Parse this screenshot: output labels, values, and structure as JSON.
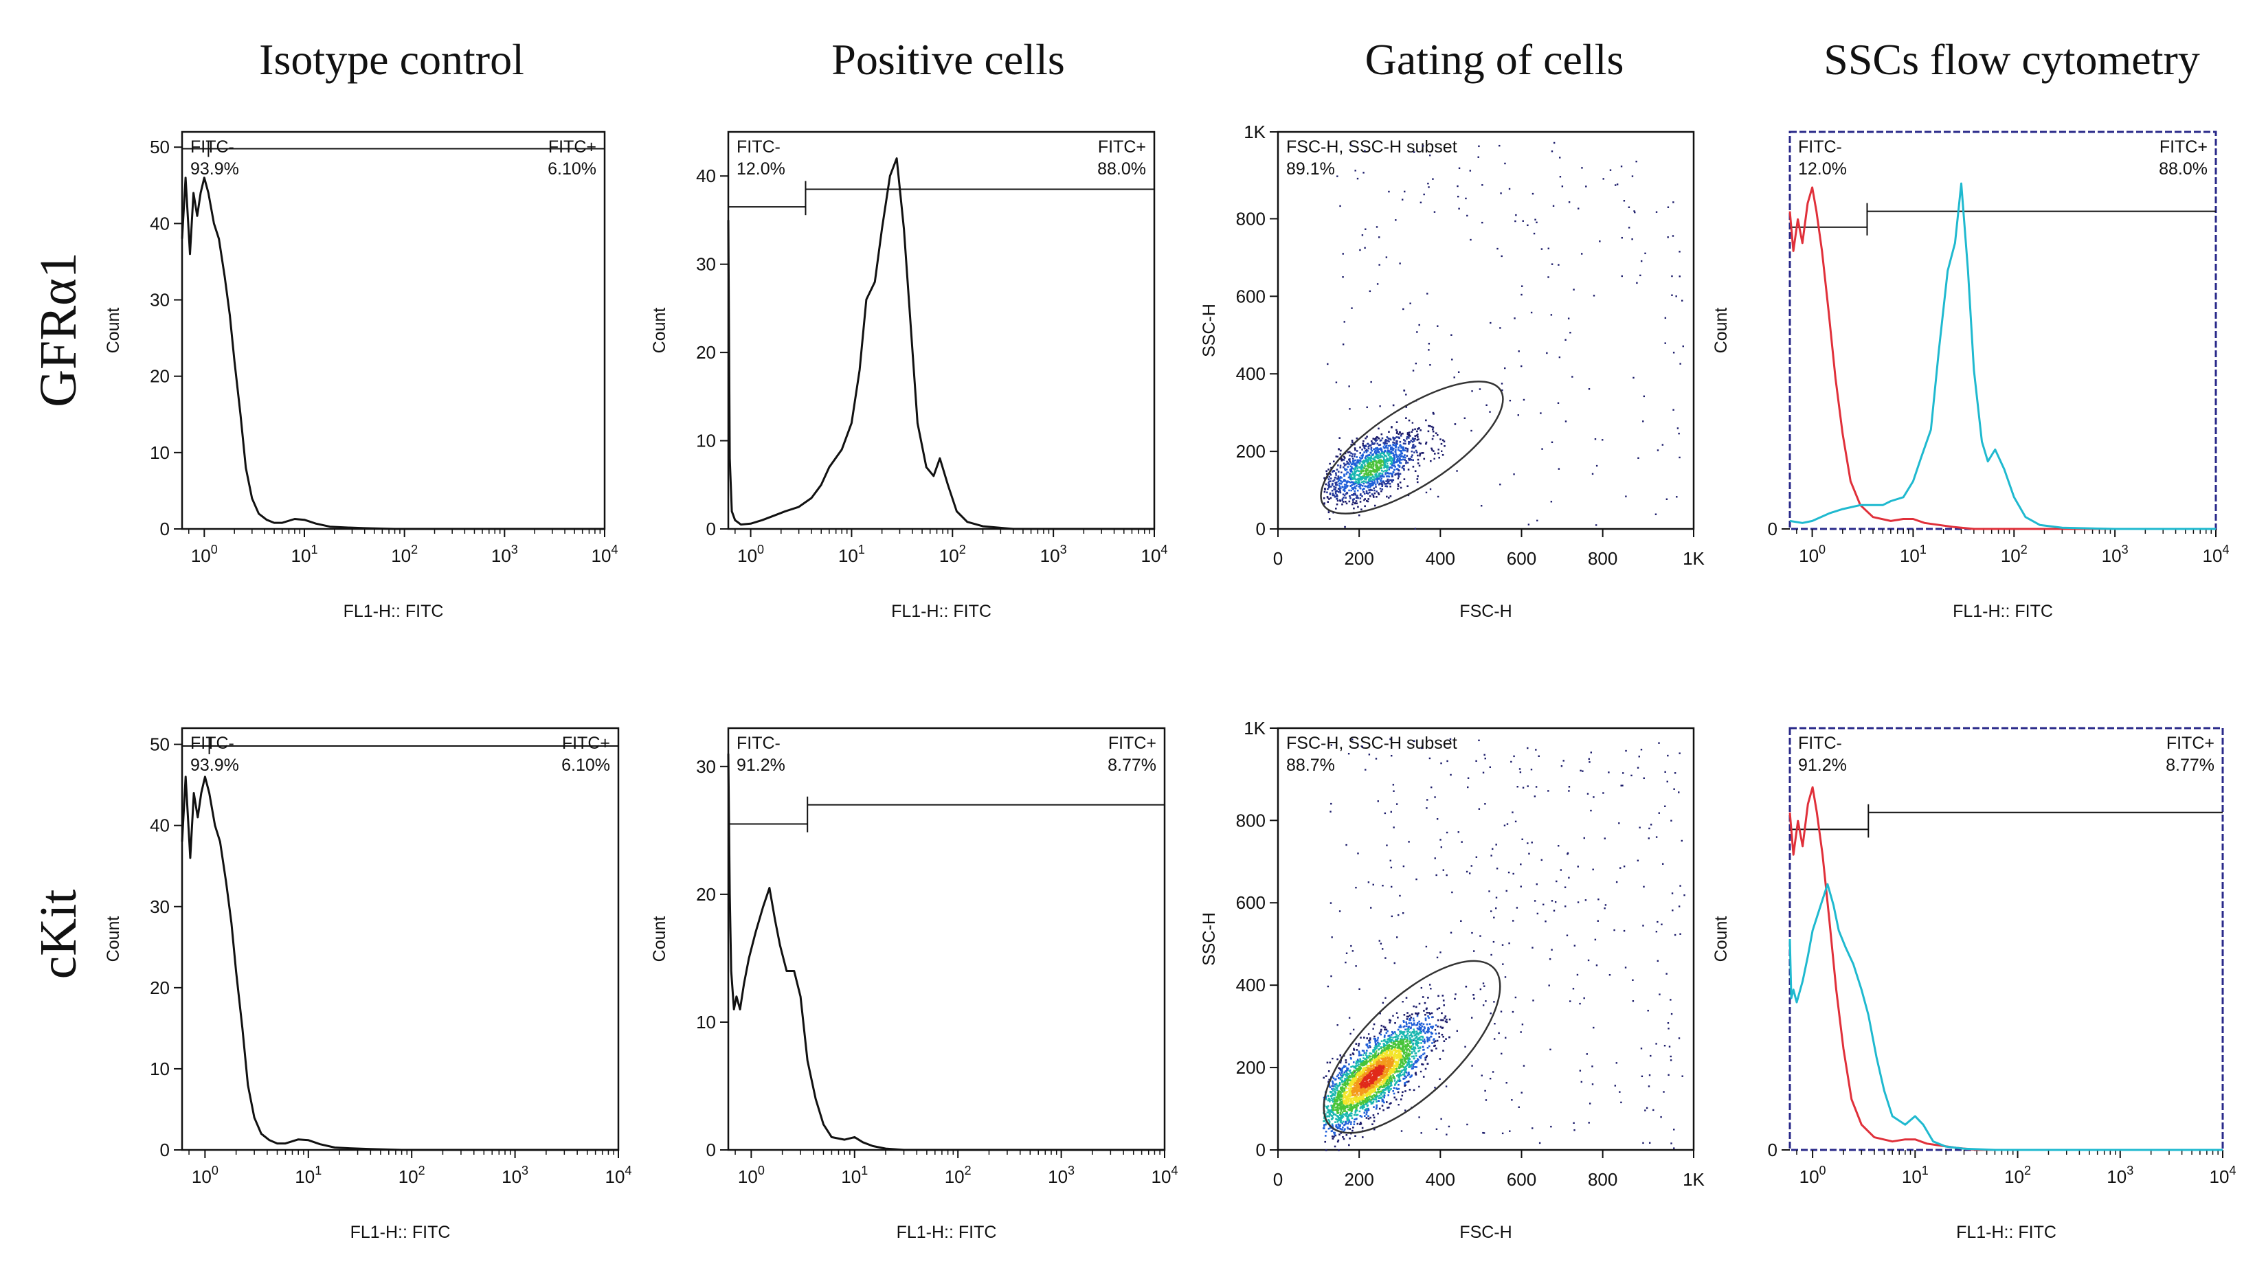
{
  "column_titles": [
    "Isotype control",
    "Positive cells",
    "Gating of cells",
    "SSCs flow cytometry"
  ],
  "row_labels": [
    "GFRα1",
    "cKit"
  ],
  "colors": {
    "ink": "#111111",
    "red": "#e0303a",
    "cyan": "#1fb9cf",
    "frame_blue": "#2a2a8a"
  },
  "chart_data": [
    {
      "id": "gfra1-isotype",
      "type": "line",
      "title": "",
      "xlabel": "FL1-H:: FITC",
      "ylabel": "Count",
      "xscale": "log",
      "xlim": [
        0.6,
        10000
      ],
      "ylim": [
        0,
        52
      ],
      "xticks": [
        "10^0",
        "10^1",
        "10^2",
        "10^3",
        "10^4"
      ],
      "yticks": [
        0,
        10,
        20,
        30,
        40,
        50
      ],
      "gates": [
        {
          "left_label": "FITC-",
          "left_pct": "93.9%",
          "right_label": "FITC+",
          "right_pct": "6.10%",
          "split": 1.1,
          "level": 49.8
        }
      ],
      "series": [
        {
          "name": "isotype",
          "color": "#111111",
          "x": [
            0.6,
            0.65,
            0.72,
            0.78,
            0.85,
            0.92,
            1.0,
            1.1,
            1.25,
            1.4,
            1.6,
            1.8,
            2.0,
            2.3,
            2.6,
            3.0,
            3.5,
            4.2,
            5,
            6,
            8,
            10,
            13,
            18,
            25,
            40,
            80,
            200,
            1000,
            10000
          ],
          "y": [
            38,
            46,
            36,
            44,
            41,
            44,
            46,
            44,
            40,
            38,
            33,
            28,
            22,
            15,
            8,
            4,
            2,
            1.2,
            0.8,
            0.8,
            1.3,
            1.2,
            0.7,
            0.3,
            0.2,
            0.1,
            0,
            0,
            0,
            0
          ]
        }
      ]
    },
    {
      "id": "gfra1-positive",
      "type": "line",
      "title": "",
      "xlabel": "FL1-H:: FITC",
      "ylabel": "Count",
      "xscale": "log",
      "xlim": [
        0.6,
        10000
      ],
      "ylim": [
        0,
        45
      ],
      "xticks": [
        "10^0",
        "10^1",
        "10^2",
        "10^3",
        "10^4"
      ],
      "yticks": [
        0,
        10,
        20,
        30,
        40
      ],
      "gates": [
        {
          "left_label": "FITC-",
          "left_pct": "12.0%",
          "right_label": "FITC+",
          "right_pct": "88.0%",
          "split": 3.5,
          "level": 36.5,
          "right_level": 38.5
        }
      ],
      "series": [
        {
          "name": "positive",
          "color": "#111111",
          "x": [
            0.6,
            0.62,
            0.65,
            0.7,
            0.8,
            1.0,
            1.3,
            1.7,
            2.2,
            3,
            4,
            5,
            6,
            8,
            10,
            12,
            14,
            17,
            20,
            24,
            28,
            33,
            38,
            45,
            55,
            65,
            75,
            90,
            110,
            140,
            200,
            400,
            1000,
            10000
          ],
          "y": [
            35,
            8,
            2,
            1,
            0.5,
            0.6,
            1,
            1.5,
            2,
            2.5,
            3.5,
            5,
            7,
            9,
            12,
            18,
            26,
            28,
            34,
            40,
            42,
            34,
            24,
            12,
            7,
            6,
            8,
            5,
            2,
            0.8,
            0.3,
            0,
            0,
            0
          ]
        }
      ]
    },
    {
      "id": "gfra1-gating",
      "type": "scatter",
      "title": "",
      "xlabel": "FSC-H",
      "ylabel": "SSC-H",
      "xscale": "linear",
      "xlim": [
        0,
        1024
      ],
      "ylim": [
        0,
        1024
      ],
      "xticks": [
        "0",
        "200",
        "400",
        "600",
        "800",
        "1K"
      ],
      "yticks": [
        "0",
        "200",
        "400",
        "600",
        "800",
        "1K"
      ],
      "gate_label": "FSC-H, SSC-H subset",
      "gate_pct": "89.1%",
      "ellipse": {
        "cx": 330,
        "cy": 210,
        "rx": 260,
        "ry": 100,
        "angle": 33
      },
      "cluster": {
        "cx": 230,
        "cy": 160,
        "sx": 60,
        "sy": 45,
        "rho": 0.6,
        "n": 1300
      },
      "scatter_noise": 220,
      "density_max": "green"
    },
    {
      "id": "gfra1-overlay",
      "type": "line",
      "title": "",
      "xlabel": "FL1-H:: FITC",
      "ylabel": "Count",
      "xscale": "log",
      "xlim": [
        0.6,
        10000
      ],
      "ylim": [
        0,
        100
      ],
      "xticks": [
        "10^0",
        "10^1",
        "10^2",
        "10^3",
        "10^4"
      ],
      "yticks": [
        0
      ],
      "gates": [
        {
          "left_label": "FITC-",
          "left_pct": "12.0%",
          "right_label": "FITC+",
          "right_pct": "88.0%",
          "split": 3.5,
          "level": 76,
          "right_level": 80
        }
      ],
      "series": [
        {
          "name": "isotype",
          "color": "#e0303a",
          "x": [
            0.6,
            0.65,
            0.72,
            0.8,
            0.9,
            1.0,
            1.1,
            1.25,
            1.45,
            1.7,
            2.0,
            2.4,
            3,
            4,
            6,
            8,
            10,
            13,
            18,
            25,
            40,
            80,
            10000
          ],
          "y": [
            80,
            70,
            78,
            72,
            82,
            86,
            80,
            70,
            55,
            38,
            24,
            12,
            6,
            3,
            2,
            2.5,
            2.5,
            1.5,
            1,
            0.5,
            0,
            0,
            0
          ]
        },
        {
          "name": "positive",
          "color": "#1fb9cf",
          "x": [
            0.6,
            0.8,
            1.0,
            1.5,
            2,
            3,
            4,
            5,
            6,
            8,
            10,
            12,
            15,
            18,
            22,
            26,
            30,
            35,
            40,
            48,
            55,
            65,
            80,
            100,
            130,
            180,
            300,
            1000,
            10000
          ],
          "y": [
            2,
            1.5,
            2,
            4,
            5,
            6,
            6,
            6,
            7,
            8,
            12,
            18,
            25,
            45,
            65,
            72,
            87,
            65,
            40,
            22,
            17,
            20,
            15,
            8,
            3,
            1,
            0.3,
            0,
            0
          ]
        }
      ]
    },
    {
      "id": "ckit-isotype",
      "type": "line",
      "title": "",
      "xlabel": "FL1-H:: FITC",
      "ylabel": "Count",
      "xscale": "log",
      "xlim": [
        0.6,
        10000
      ],
      "ylim": [
        0,
        52
      ],
      "xticks": [
        "10^0",
        "10^1",
        "10^2",
        "10^3",
        "10^4"
      ],
      "yticks": [
        0,
        10,
        20,
        30,
        40,
        50
      ],
      "gates": [
        {
          "left_label": "FITC-",
          "left_pct": "93.9%",
          "right_label": "FITC+",
          "right_pct": "6.10%",
          "split": 1.1,
          "level": 49.8
        }
      ],
      "series": [
        {
          "name": "isotype",
          "color": "#111111",
          "x": [
            0.6,
            0.65,
            0.72,
            0.78,
            0.85,
            0.92,
            1.0,
            1.1,
            1.25,
            1.4,
            1.6,
            1.8,
            2.0,
            2.3,
            2.6,
            3.0,
            3.5,
            4.2,
            5,
            6,
            8,
            10,
            13,
            18,
            25,
            40,
            80,
            200,
            1000,
            10000
          ],
          "y": [
            38,
            46,
            36,
            44,
            41,
            44,
            46,
            44,
            40,
            38,
            33,
            28,
            22,
            15,
            8,
            4,
            2,
            1.2,
            0.8,
            0.8,
            1.3,
            1.2,
            0.7,
            0.3,
            0.2,
            0.1,
            0,
            0,
            0,
            0
          ]
        }
      ]
    },
    {
      "id": "ckit-positive",
      "type": "line",
      "title": "",
      "xlabel": "FL1-H:: FITC",
      "ylabel": "Count",
      "xscale": "log",
      "xlim": [
        0.6,
        10000
      ],
      "ylim": [
        0,
        33
      ],
      "xticks": [
        "10^0",
        "10^1",
        "10^2",
        "10^3",
        "10^4"
      ],
      "yticks": [
        0,
        10,
        20,
        30
      ],
      "gates": [
        {
          "left_label": "FITC-",
          "left_pct": "91.2%",
          "right_label": "FITC+",
          "right_pct": "8.77%",
          "split": 3.5,
          "level": 25.5,
          "right_level": 27
        }
      ],
      "series": [
        {
          "name": "positive",
          "color": "#111111",
          "x": [
            0.6,
            0.62,
            0.64,
            0.68,
            0.72,
            0.78,
            0.85,
            0.95,
            1.1,
            1.3,
            1.5,
            1.7,
            1.9,
            2.2,
            2.6,
            3.0,
            3.5,
            4.2,
            5,
            6,
            8,
            10,
            12,
            15,
            20,
            30,
            50,
            100,
            1000,
            10000
          ],
          "y": [
            31,
            20,
            14,
            11,
            12,
            11,
            13,
            15,
            17,
            19,
            20.5,
            18,
            16,
            14,
            14,
            12,
            7,
            4,
            2,
            1,
            0.8,
            1,
            0.6,
            0.3,
            0.1,
            0,
            0,
            0,
            0,
            0
          ]
        }
      ]
    },
    {
      "id": "ckit-gating",
      "type": "scatter",
      "title": "",
      "xlabel": "FSC-H",
      "ylabel": "SSC-H",
      "xscale": "linear",
      "xlim": [
        0,
        1024
      ],
      "ylim": [
        0,
        1024
      ],
      "xticks": [
        "0",
        "200",
        "400",
        "600",
        "800",
        "1K"
      ],
      "yticks": [
        "0",
        "200",
        "400",
        "600",
        "800",
        "1K"
      ],
      "gate_label": "FSC-H, SSC-H subset",
      "gate_pct": "88.7%",
      "ellipse": {
        "cx": 330,
        "cy": 250,
        "rx": 280,
        "ry": 115,
        "angle": 44
      },
      "cluster": {
        "cx": 230,
        "cy": 180,
        "sx": 70,
        "sy": 65,
        "rho": 0.8,
        "n": 3200
      },
      "scatter_noise": 380,
      "density_max": "red"
    },
    {
      "id": "ckit-overlay",
      "type": "line",
      "title": "",
      "xlabel": "FL1-H:: FITC",
      "ylabel": "Count",
      "xscale": "log",
      "xlim": [
        0.6,
        10000
      ],
      "ylim": [
        0,
        100
      ],
      "xticks": [
        "10^0",
        "10^1",
        "10^2",
        "10^3",
        "10^4"
      ],
      "yticks": [
        0
      ],
      "gates": [
        {
          "left_label": "FITC-",
          "left_pct": "91.2%",
          "right_label": "FITC+",
          "right_pct": "8.77%",
          "split": 3.5,
          "level": 76,
          "right_level": 80
        }
      ],
      "series": [
        {
          "name": "isotype",
          "color": "#e0303a",
          "x": [
            0.6,
            0.65,
            0.72,
            0.8,
            0.9,
            1.0,
            1.1,
            1.25,
            1.45,
            1.7,
            2.0,
            2.4,
            3,
            4,
            6,
            8,
            10,
            13,
            18,
            25,
            40,
            80,
            10000
          ],
          "y": [
            80,
            70,
            78,
            72,
            82,
            86,
            80,
            70,
            55,
            38,
            24,
            12,
            6,
            3,
            2,
            2.5,
            2.5,
            1.5,
            1,
            0.5,
            0,
            0,
            0
          ]
        },
        {
          "name": "positive",
          "color": "#1fb9cf",
          "x": [
            0.6,
            0.62,
            0.65,
            0.7,
            0.8,
            0.9,
            1.0,
            1.2,
            1.4,
            1.6,
            1.8,
            2.1,
            2.5,
            3.0,
            3.5,
            4.2,
            5,
            6,
            8,
            10,
            12,
            15,
            20,
            30,
            60,
            10000
          ],
          "y": [
            50,
            36,
            38,
            35,
            40,
            46,
            52,
            58,
            63,
            58,
            52,
            48,
            44,
            38,
            32,
            22,
            14,
            8,
            6,
            8,
            6,
            2,
            0.8,
            0.3,
            0,
            0
          ]
        }
      ]
    }
  ]
}
